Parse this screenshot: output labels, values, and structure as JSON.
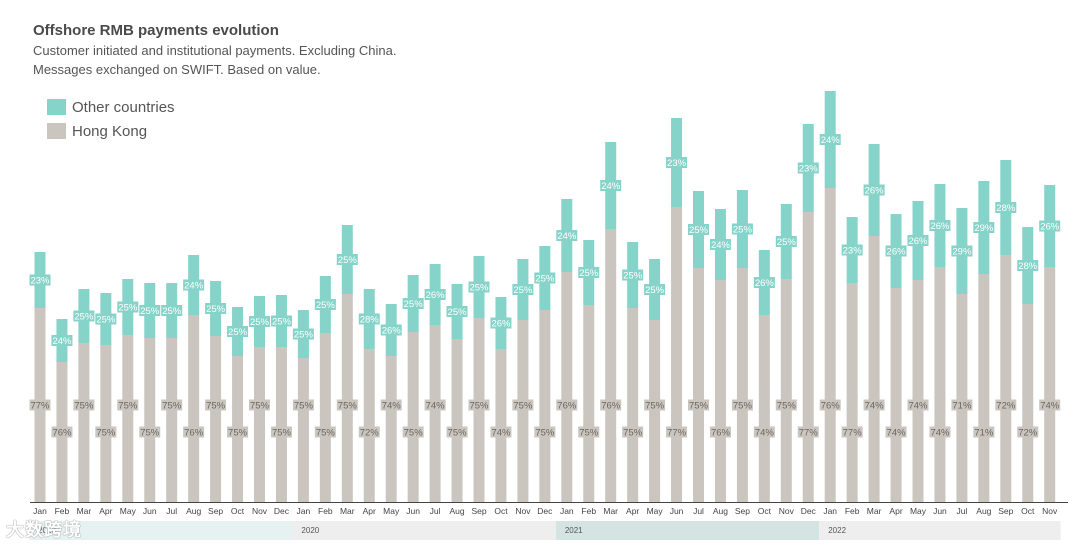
{
  "chart_data": {
    "type": "bar",
    "title": "Offshore RMB payments evolution",
    "subtitle": "Customer initiated and institutional payments. Excluding China.",
    "subtitle2": "Messages exchanged on SWIFT. Based on value.",
    "stacked": true,
    "grid": false,
    "legend_position": "top-left",
    "categories": [
      "Jan",
      "Feb",
      "Mar",
      "Apr",
      "May",
      "Jun",
      "Jul",
      "Aug",
      "Sep",
      "Oct",
      "Nov",
      "Dec",
      "Jan",
      "Feb",
      "Mar",
      "Apr",
      "May",
      "Jun",
      "Jul",
      "Aug",
      "Sep",
      "Oct",
      "Nov",
      "Dec",
      "Jan",
      "Feb",
      "Mar",
      "Apr",
      "May",
      "Jun",
      "Jul",
      "Aug",
      "Sep",
      "Oct",
      "Nov",
      "Dec",
      "Jan",
      "Feb",
      "Mar",
      "Apr",
      "May",
      "Jun",
      "Jul",
      "Aug",
      "Sep",
      "Oct",
      "Nov"
    ],
    "years": [
      {
        "label": "2019",
        "start": 0,
        "end": 11,
        "color": "#e6f2f1"
      },
      {
        "label": "2020",
        "start": 12,
        "end": 23,
        "color": "#eeeeee"
      },
      {
        "label": "2021",
        "start": 24,
        "end": 35,
        "color": "#d3e4e2"
      },
      {
        "label": "2022",
        "start": 36,
        "end": 46,
        "color": "#eeeeee"
      }
    ],
    "series": [
      {
        "name": "Hong Kong",
        "color": "#cbc5bf",
        "label_color": "#6b6560",
        "percent": [
          77,
          76,
          75,
          75,
          75,
          75,
          75,
          76,
          75,
          75,
          75,
          75,
          75,
          75,
          75,
          72,
          74,
          75,
          74,
          75,
          75,
          74,
          75,
          75,
          76,
          75,
          76,
          75,
          75,
          77,
          75,
          76,
          75,
          74,
          75,
          77,
          76,
          77,
          74,
          74,
          74,
          74,
          71,
          71,
          72,
          72,
          74
        ],
        "values": [
          194,
          140,
          159,
          157,
          167,
          164,
          164,
          187,
          166,
          146,
          155,
          155,
          144,
          169,
          208,
          153,
          146,
          170,
          177,
          163,
          184,
          153,
          182,
          192,
          230,
          197,
          273,
          194,
          182,
          295,
          234,
          222,
          234,
          187,
          223,
          290,
          314,
          219,
          266,
          214,
          222,
          235,
          208,
          228,
          247,
          198,
          235
        ]
      },
      {
        "name": "Other countries",
        "color": "#86d3c9",
        "label_color": "#ffffff",
        "percent": [
          23,
          24,
          25,
          25,
          25,
          25,
          25,
          24,
          25,
          25,
          25,
          25,
          25,
          25,
          25,
          28,
          26,
          25,
          26,
          25,
          25,
          26,
          25,
          25,
          24,
          25,
          24,
          25,
          25,
          23,
          25,
          24,
          25,
          26,
          25,
          23,
          24,
          23,
          26,
          26,
          26,
          26,
          29,
          29,
          28,
          28,
          26
        ],
        "values": [
          56,
          43,
          54,
          52,
          56,
          55,
          55,
          60,
          55,
          49,
          51,
          52,
          48,
          57,
          69,
          60,
          52,
          57,
          61,
          55,
          62,
          52,
          61,
          64,
          73,
          65,
          87,
          66,
          61,
          89,
          77,
          71,
          78,
          65,
          75,
          88,
          97,
          66,
          92,
          74,
          79,
          83,
          86,
          93,
          95,
          77,
          82
        ]
      }
    ],
    "ylim": [
      0,
      420
    ]
  },
  "watermark": "大数跨境"
}
